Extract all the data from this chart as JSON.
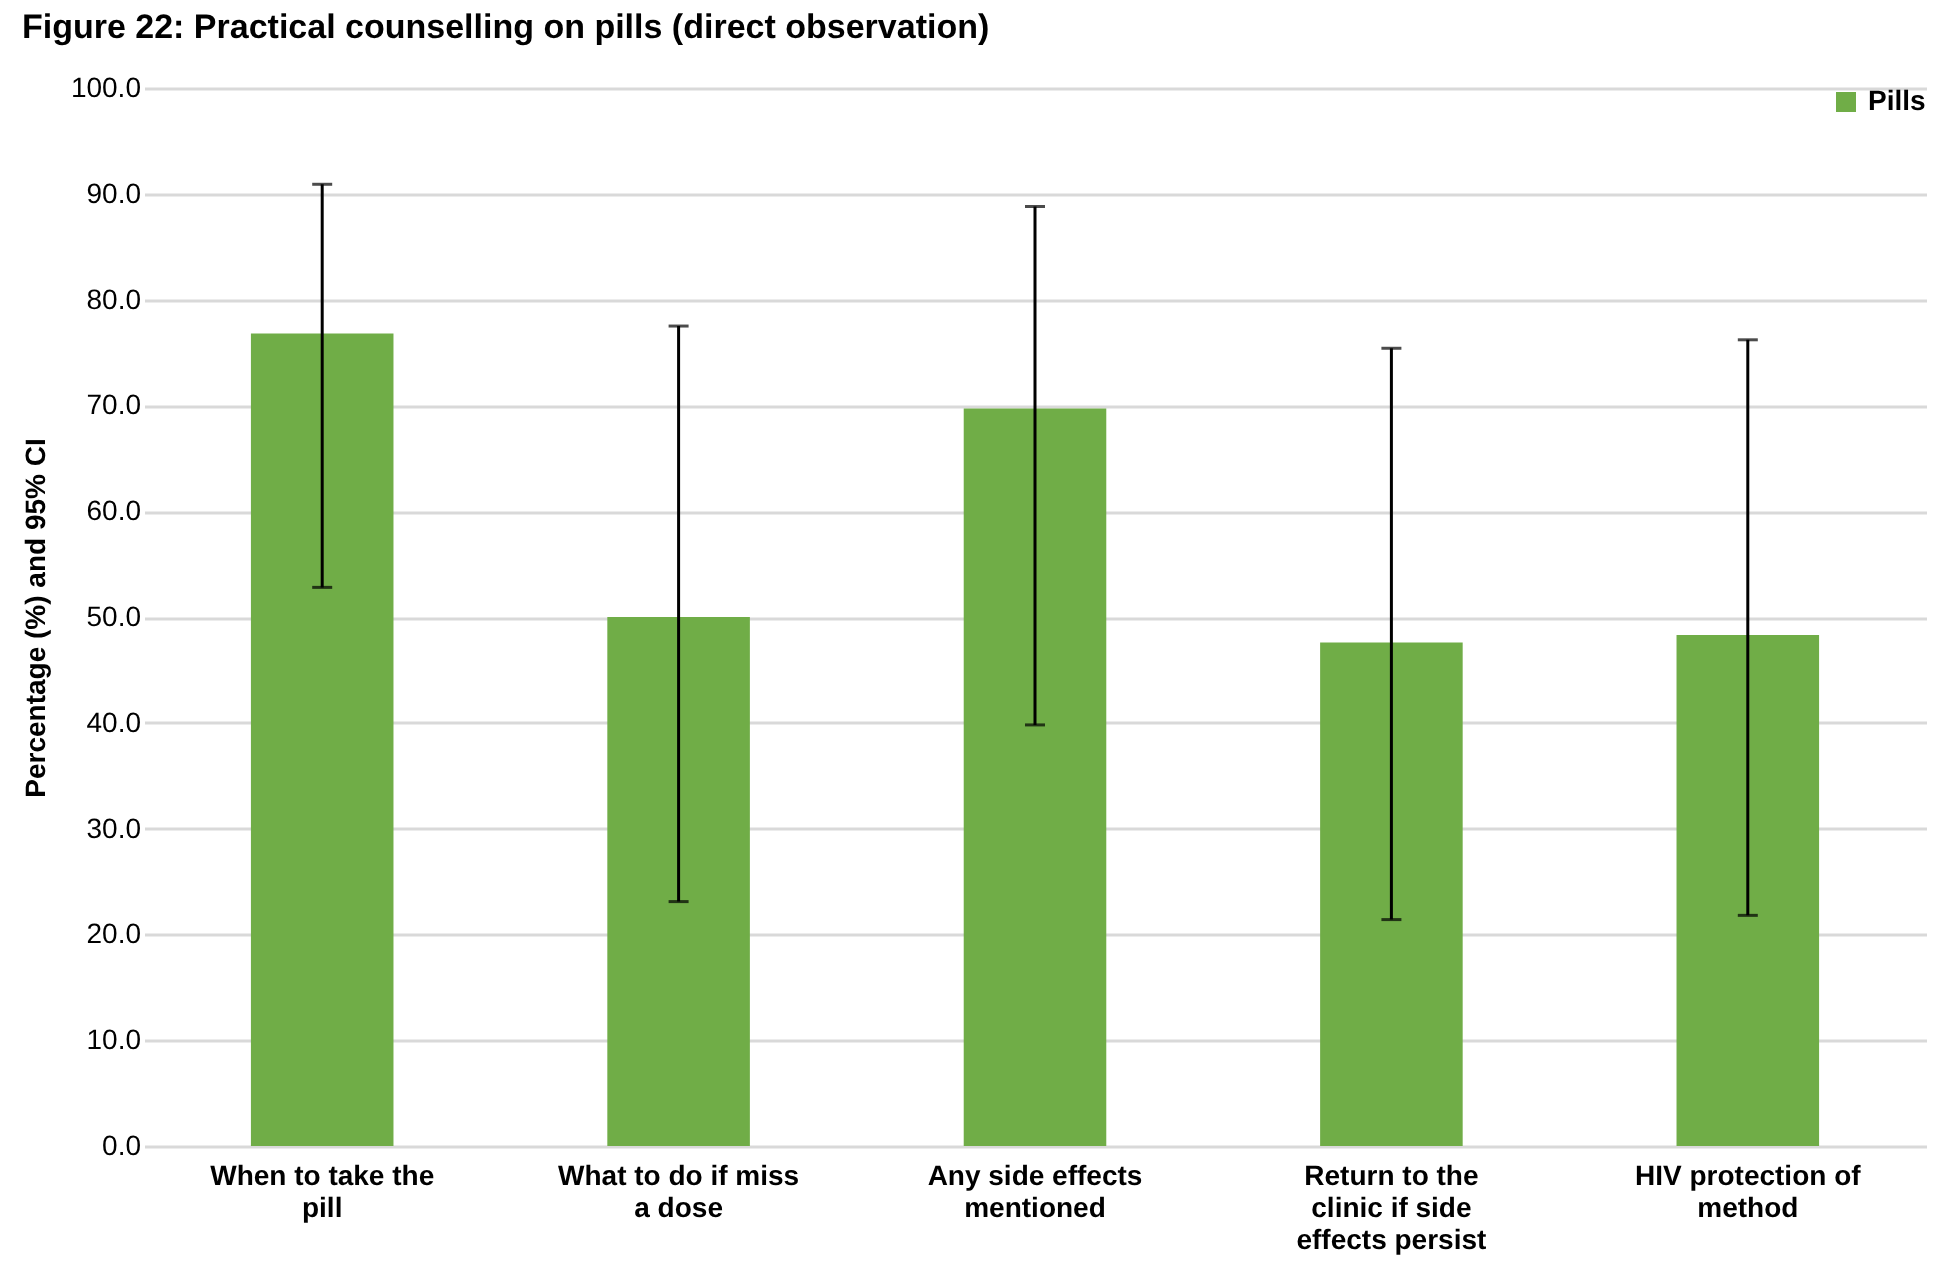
{
  "chart_data": {
    "type": "bar",
    "title": "Figure 22: Practical counselling on pills (direct observation)",
    "ylabel": "Percentage (%) and 95% CI",
    "categories": [
      "When to take the pill",
      "What to do if miss a dose",
      "Any side effects mentioned",
      "Return to the clinic if side effects persist",
      "HIV protection of method"
    ],
    "series": [
      {
        "name": "Pills",
        "color": "#70ad47",
        "values": [
          76.8,
          50.0,
          69.7,
          47.6,
          48.3
        ],
        "errors": [
          [
            52.8,
            90.9
          ],
          [
            23.1,
            77.5
          ],
          [
            39.8,
            88.8
          ],
          [
            21.4,
            75.4
          ],
          [
            21.8,
            76.2
          ]
        ]
      }
    ],
    "ylim": [
      0,
      100
    ],
    "yticks": [
      {
        "value": 0,
        "label": "0.0"
      },
      {
        "value": 10,
        "label": "10.0"
      },
      {
        "value": 20,
        "label": "20.0"
      },
      {
        "value": 30,
        "label": "30.0"
      },
      {
        "value": 40,
        "label": "40.0"
      },
      {
        "value": 50,
        "label": "50.0"
      },
      {
        "value": 60,
        "label": "60.0"
      },
      {
        "value": 70,
        "label": "70.0"
      },
      {
        "value": 80,
        "label": "80.0"
      },
      {
        "value": 90,
        "label": "90.0"
      },
      {
        "value": 100,
        "label": "100.0"
      }
    ],
    "grid": "y",
    "legend": "top right"
  }
}
